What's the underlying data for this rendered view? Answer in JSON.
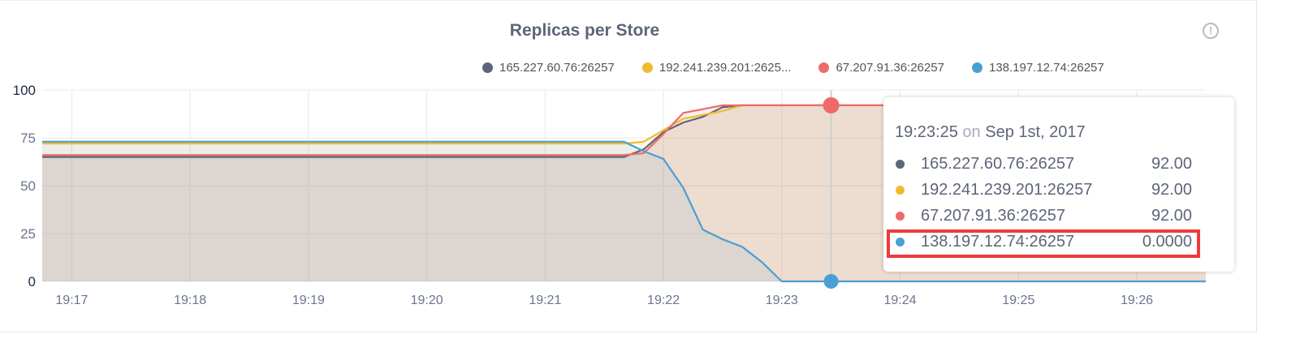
{
  "chart_data": {
    "type": "area",
    "title": "Replicas per Store",
    "xlabel": "",
    "ylabel": "",
    "ylim": [
      0,
      100
    ],
    "xlim": [
      "19:16:45",
      "19:26:35"
    ],
    "y_ticks": [
      "0",
      "25",
      "50",
      "75",
      "100"
    ],
    "x_ticks": [
      "19:17",
      "19:18",
      "19:19",
      "19:20",
      "19:21",
      "19:22",
      "19:23",
      "19:24",
      "19:25",
      "19:26"
    ],
    "grid": true,
    "legend_position": "top-right",
    "x": [
      "19:16:45",
      "19:21:40",
      "19:21:50",
      "19:22:00",
      "19:22:10",
      "19:22:20",
      "19:22:30",
      "19:22:40",
      "19:22:50",
      "19:23:00",
      "19:26:35"
    ],
    "series": [
      {
        "name": "165.227.60.76:26257",
        "color": "#5d6579",
        "values": [
          65,
          65,
          69,
          78,
          83,
          86,
          91,
          92,
          92,
          92,
          92
        ]
      },
      {
        "name": "192.241.239.201:2625...",
        "color": "#f1bb2b",
        "values": [
          72,
          72,
          73,
          79,
          85,
          87,
          89,
          92,
          92,
          92,
          92
        ]
      },
      {
        "name": "67.207.91.36:26257",
        "color": "#ef6a6a",
        "values": [
          66,
          66,
          67,
          77,
          88,
          90,
          92,
          92,
          92,
          92,
          92
        ]
      },
      {
        "name": "138.197.12.74:26257",
        "color": "#4a9fd5",
        "values": [
          73,
          73,
          68,
          64,
          49,
          27,
          22,
          18,
          10,
          0,
          0
        ]
      }
    ],
    "cursor": {
      "x": "19:23:25",
      "series_values": [
        92,
        92
      ]
    }
  },
  "info_icon": "info-circle-icon",
  "tooltip": {
    "time": "19:23:25",
    "on": "on",
    "date": "Sep 1st, 2017",
    "rows": [
      {
        "label": "165.227.60.76:26257",
        "value": "92.00",
        "color": "#5d6579"
      },
      {
        "label": "192.241.239.201:26257",
        "value": "92.00",
        "color": "#f1bb2b"
      },
      {
        "label": "67.207.91.36:26257",
        "value": "92.00",
        "color": "#ef6a6a"
      },
      {
        "label": "138.197.12.74:26257",
        "value": "0.0000",
        "color": "#4a9fd5"
      }
    ],
    "highlight_color": "#f03a3a"
  }
}
